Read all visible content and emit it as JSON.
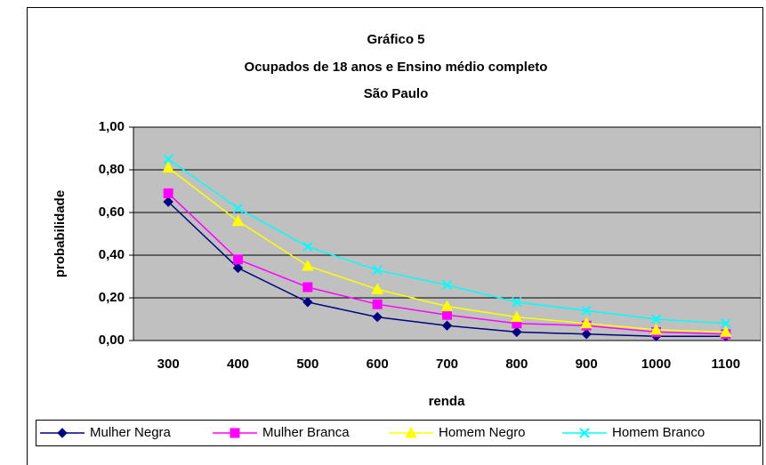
{
  "chart_data": {
    "type": "line",
    "title": [
      "Gráfico 5",
      "Ocupados de 18 anos e Ensino médio completo",
      "São Paulo"
    ],
    "y_label": "probabilidade",
    "x_label": "renda",
    "categories": [
      "300",
      "400",
      "500",
      "600",
      "700",
      "800",
      "900",
      "1000",
      "1100"
    ],
    "series": [
      {
        "name": "Mulher Negra",
        "color": "#000080",
        "marker": "diamond",
        "values": [
          0.65,
          0.34,
          0.18,
          0.11,
          0.07,
          0.04,
          0.03,
          0.02,
          0.02
        ]
      },
      {
        "name": "Mulher Branca",
        "color": "#ff00ff",
        "marker": "square",
        "values": [
          0.69,
          0.38,
          0.25,
          0.17,
          0.12,
          0.08,
          0.07,
          0.04,
          0.03
        ]
      },
      {
        "name": "Homem Negro",
        "color": "#ffff00",
        "marker": "triangle",
        "values": [
          0.81,
          0.56,
          0.35,
          0.24,
          0.16,
          0.11,
          0.08,
          0.05,
          0.04
        ]
      },
      {
        "name": "Homem Branco",
        "color": "#00ffff",
        "marker": "x",
        "values": [
          0.85,
          0.62,
          0.44,
          0.33,
          0.26,
          0.18,
          0.14,
          0.1,
          0.08
        ]
      }
    ],
    "ylim": [
      0,
      1
    ],
    "yticks": [
      {
        "value": 0,
        "label": "0,00"
      },
      {
        "value": 0.2,
        "label": "0,20"
      },
      {
        "value": 0.4,
        "label": "0,40"
      },
      {
        "value": 0.6,
        "label": "0,60"
      },
      {
        "value": 0.8,
        "label": "0,80"
      },
      {
        "value": 1,
        "label": "1,00"
      }
    ],
    "grid": true,
    "legend": "bottom"
  }
}
